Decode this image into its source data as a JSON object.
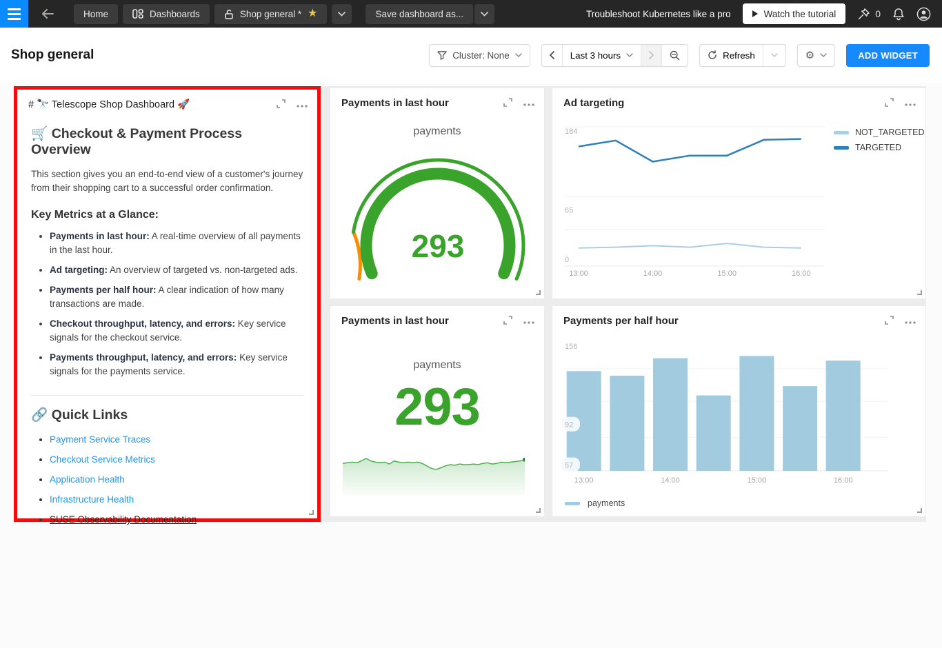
{
  "topbar": {
    "tabs": {
      "home": "Home",
      "dashboards": "Dashboards",
      "current": "Shop general *"
    },
    "save_button": "Save dashboard as...",
    "promo_text": "Troubleshoot Kubernetes like a pro",
    "tutorial_button": "Watch the tutorial",
    "pin_count": "0"
  },
  "toolbar": {
    "title": "Shop general",
    "cluster_filter": "Cluster: None",
    "time_range": "Last 3 hours",
    "refresh_label": "Refresh",
    "add_widget": "ADD WIDGET"
  },
  "note_widget": {
    "title": "# 🔭 Telescope Shop Dashboard 🚀",
    "heading": "🛒 Checkout & Payment Process Overview",
    "intro": "This section gives you an end-to-end view of a customer's journey from their shopping cart to a successful order confirmation.",
    "metrics_heading": "Key Metrics at a Glance:",
    "metrics": [
      {
        "lead": "Payments in last hour:",
        "text": "A real-time overview of all payments in the last hour."
      },
      {
        "lead": "Ad targeting:",
        "text": "An overview of targeted vs. non-targeted ads."
      },
      {
        "lead": "Payments per half hour:",
        "text": "A clear indication of how many transactions are made."
      },
      {
        "lead": "Checkout throughput, latency, and errors:",
        "text": "Key service signals for the checkout service."
      },
      {
        "lead": "Payments throughput, latency, and errors:",
        "text": "Key service signals for the payments service."
      }
    ],
    "links_heading": "🔗 Quick Links",
    "links": [
      {
        "label": "Payment Service Traces",
        "style": "link"
      },
      {
        "label": "Checkout Service Metrics",
        "style": "link"
      },
      {
        "label": "Application Health",
        "style": "link"
      },
      {
        "label": "Infrastructure Health",
        "style": "link"
      },
      {
        "label": "SUSE Observability Documentation",
        "style": "plain-underline"
      }
    ]
  },
  "chart_data": [
    {
      "name": "payments-gauge",
      "type": "gauge",
      "title": "Payments in last hour",
      "series_label": "payments",
      "value": 293,
      "color": "#3aa32c",
      "accent_color": "#ff8c00"
    },
    {
      "name": "ad-targeting",
      "type": "line",
      "title": "Ad targeting",
      "x": [
        "13:00",
        "13:30",
        "14:00",
        "14:30",
        "15:00",
        "15:30",
        "16:00"
      ],
      "xticks": [
        "13:00",
        "14:00",
        "15:00",
        "16:00"
      ],
      "series": [
        {
          "name": "NOT_TARGETED",
          "color": "#a8cfe5",
          "values": [
            24,
            25,
            27,
            25,
            30,
            25,
            24
          ]
        },
        {
          "name": "TARGETED",
          "color": "#2e7fbd",
          "values": [
            158,
            166,
            138,
            146,
            146,
            167,
            168
          ]
        }
      ],
      "ylim": [
        0,
        184
      ],
      "yticks": [
        184,
        65,
        0
      ],
      "grid_values": [
        184,
        92,
        48,
        0
      ],
      "legend_position": "right",
      "grid": true
    },
    {
      "name": "payments-stat",
      "type": "stat",
      "title": "Payments in last hour",
      "series_label": "payments",
      "value": 293,
      "color": "#3aa32c",
      "trend": [
        62,
        63,
        64,
        63,
        66,
        70,
        66,
        64,
        63,
        64,
        61,
        66,
        64,
        63,
        64,
        63,
        64,
        62,
        58,
        54,
        52,
        55,
        58,
        60,
        59,
        61,
        60,
        60,
        61,
        60,
        62,
        63,
        61,
        62,
        64,
        63,
        64,
        65,
        66,
        68
      ]
    },
    {
      "name": "payments-per-half-hour",
      "type": "bar",
      "title": "Payments per half hour",
      "categories": [
        "13:00",
        "13:30",
        "14:00",
        "14:30",
        "15:00",
        "15:30",
        "16:00"
      ],
      "xticks": [
        "13:00",
        "14:00",
        "15:00",
        "16:00"
      ],
      "values": [
        138,
        134,
        149,
        117,
        151,
        125,
        147
      ],
      "color": "#a3cbe0",
      "yticks": [
        156,
        92,
        57
      ],
      "ymin": 52,
      "grid_values": [
        140,
        112,
        81,
        52
      ],
      "legend": "payments",
      "legend_position": "bottom",
      "grid": true
    }
  ]
}
